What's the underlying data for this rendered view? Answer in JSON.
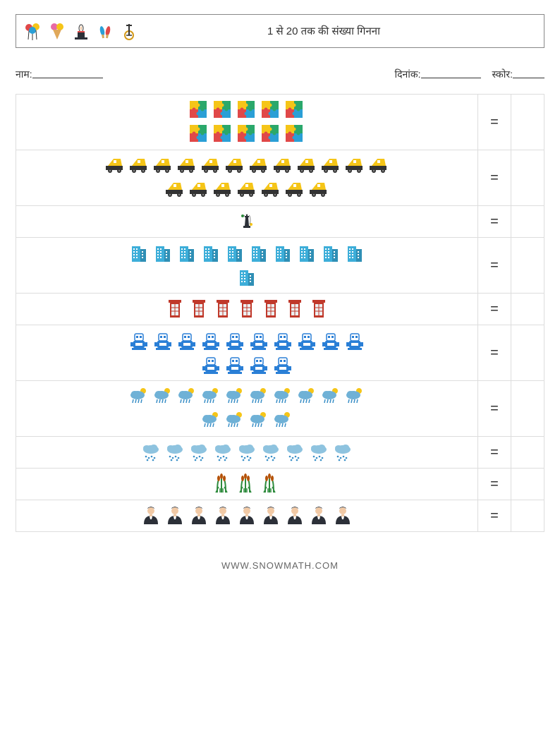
{
  "header": {
    "title": "1 से 20 तक की संख्या गिनना",
    "icon_names": [
      "balloons-icon",
      "icecream-icon",
      "magic-hat-icon",
      "juggling-pins-icon",
      "unicycle-icon"
    ]
  },
  "meta": {
    "name_label": "नाम:",
    "date_label": "दिनांक:",
    "score_label": "स्कोर:"
  },
  "colors": {
    "border": "#888888",
    "cell_border": "#dddddd",
    "text": "#333333",
    "puzzle_a": "#f5c518",
    "puzzle_b": "#2aa86b",
    "puzzle_c": "#e04848",
    "puzzle_d": "#2a9fd6",
    "truck_body": "#f5c518",
    "truck_wheel": "#333333",
    "chess": "#2c3038",
    "building": "#3daed9",
    "building_dark": "#2f8fb5",
    "phone_booth": "#c0392b",
    "phone_glass": "#ecf0f1",
    "robot_blue": "#2a7fd6",
    "robot_white": "#ffffff",
    "moon": "#f5c518",
    "cloud": "#6fb1d6",
    "rain_cloud": "#8ec3df",
    "rain_drop": "#3a8fc7",
    "reed_green": "#2e8b3d",
    "reed_brown": "#b5530a",
    "person_skin": "#f1c9a5",
    "person_dark": "#2c3038"
  },
  "rows": [
    {
      "item": "puzzle",
      "count": 10,
      "per_row": 5,
      "icon_name": "puzzle-icon"
    },
    {
      "item": "truck",
      "count": 19,
      "per_row": 12,
      "icon_name": "truck-icon"
    },
    {
      "item": "chess",
      "count": 1,
      "per_row": 1,
      "icon_name": "chess-icon"
    },
    {
      "item": "building",
      "count": 11,
      "per_row": 10,
      "icon_name": "building-icon"
    },
    {
      "item": "phonebooth",
      "count": 7,
      "per_row": 7,
      "icon_name": "phone-booth-icon"
    },
    {
      "item": "robot",
      "count": 14,
      "per_row": 10,
      "icon_name": "robot-icon"
    },
    {
      "item": "storm",
      "count": 14,
      "per_row": 10,
      "icon_name": "storm-cloud-icon"
    },
    {
      "item": "raincloud",
      "count": 9,
      "per_row": 9,
      "icon_name": "rain-cloud-icon"
    },
    {
      "item": "reeds",
      "count": 3,
      "per_row": 3,
      "icon_name": "reeds-icon"
    },
    {
      "item": "person",
      "count": 9,
      "per_row": 9,
      "icon_name": "person-icon"
    }
  ],
  "equals_symbol": "=",
  "footer": {
    "text": "WWW.SNOWMATH.COM"
  }
}
